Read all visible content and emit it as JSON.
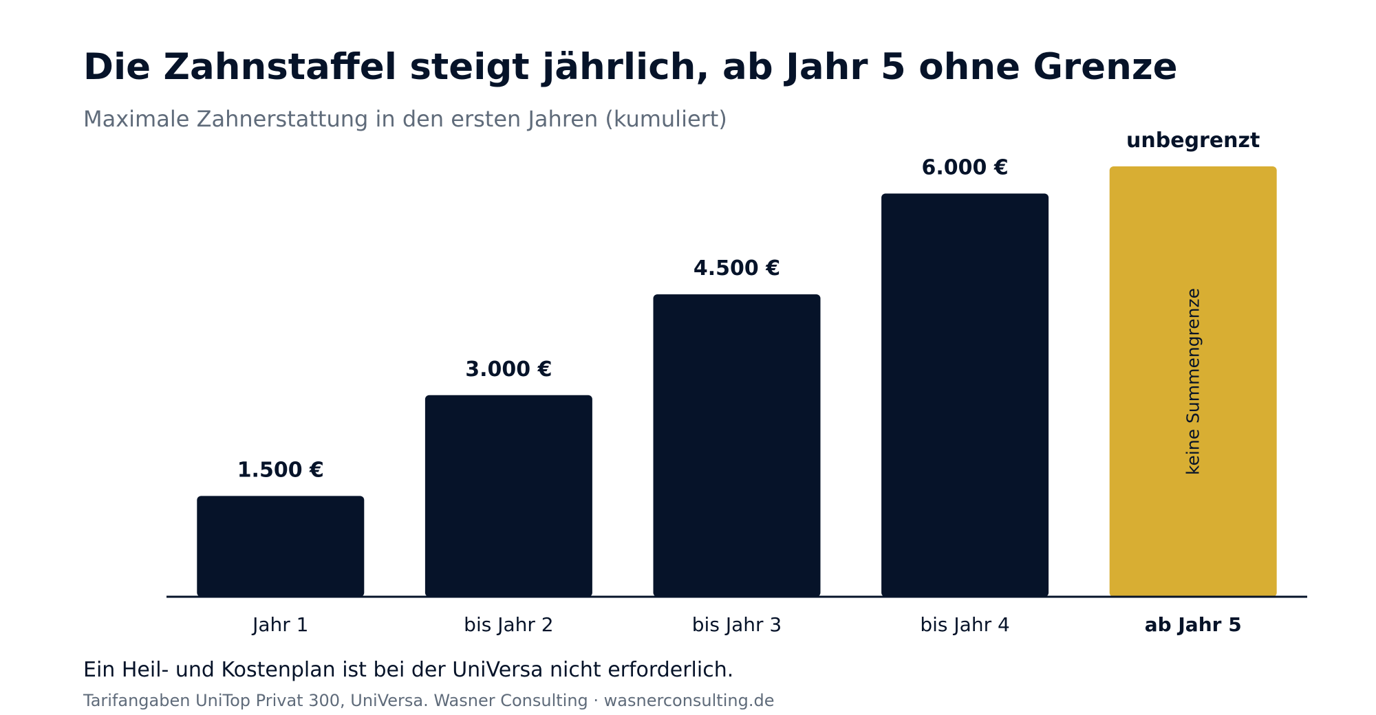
{
  "header": {
    "title": "Die Zahnstaffel steigt jährlich, ab Jahr 5 ohne Grenze",
    "subtitle": "Maximale Zahnerstattung in den ersten Jahren (kumuliert)"
  },
  "chart_data": {
    "type": "bar",
    "title": "Die Zahnstaffel steigt jährlich, ab Jahr 5 ohne Grenze",
    "subtitle": "Maximale Zahnerstattung in den ersten Jahren (kumuliert)",
    "xlabel": "",
    "ylabel": "",
    "categories": [
      "Jahr 1",
      "bis Jahr 2",
      "bis Jahr 3",
      "bis Jahr 4",
      "ab Jahr 5"
    ],
    "values": [
      1500,
      3000,
      4500,
      6000,
      null
    ],
    "value_labels": [
      "1.500 €",
      "3.000 €",
      "4.500 €",
      "6.000 €",
      "unbegrenzt"
    ],
    "unlimited_bar": {
      "category": "ab Jahr 5",
      "label": "unbegrenzt",
      "inner_label": "keine Summengrenze"
    },
    "ylim": [
      0,
      6650
    ],
    "grid": false,
    "legend": "none",
    "colors": {
      "bar": "#061329",
      "highlight": "#d8ae33",
      "axis": "#061329",
      "text": "#061329",
      "muted": "#5f6b7a"
    }
  },
  "footer": {
    "note": "Ein Heil- und Kostenplan ist bei der UniVersa nicht erforderlich.",
    "source": "Tarifangaben UniTop Privat 300, UniVersa. Wasner Consulting · wasnerconsulting.de"
  }
}
